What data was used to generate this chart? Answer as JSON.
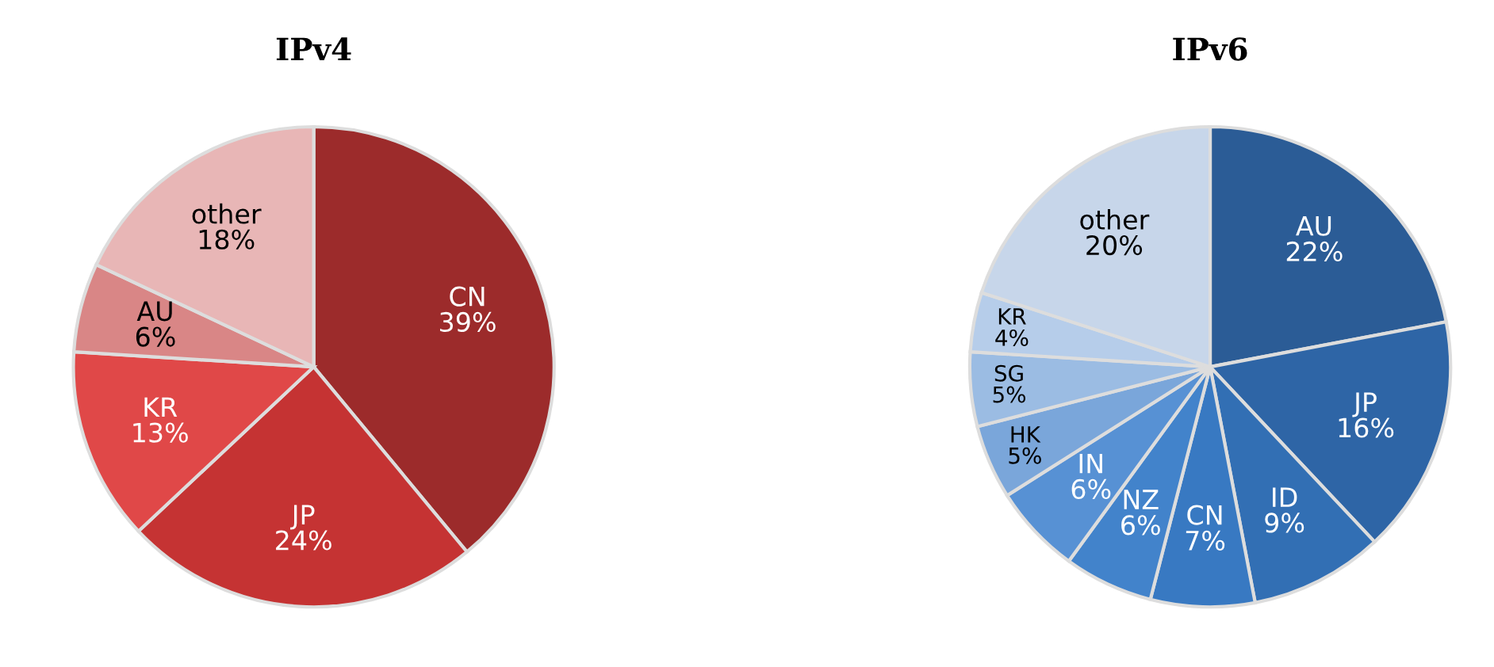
{
  "chart_data": [
    {
      "type": "pie",
      "title": "IPv4",
      "categories": [
        "CN",
        "JP",
        "KR",
        "AU",
        "other"
      ],
      "values": [
        39,
        24,
        13,
        6,
        18
      ],
      "value_labels": [
        "39%",
        "24%",
        "13%",
        "6%",
        "18%"
      ],
      "colors": [
        "#9c2b2b",
        "#c53333",
        "#e04848",
        "#d98686",
        "#e8b6b6"
      ]
    },
    {
      "type": "pie",
      "title": "IPv6",
      "categories": [
        "AU",
        "JP",
        "ID",
        "CN",
        "NZ",
        "IN",
        "HK",
        "SG",
        "KR",
        "other"
      ],
      "values": [
        22,
        16,
        9,
        7,
        6,
        6,
        5,
        5,
        4,
        20
      ],
      "value_labels": [
        "22%",
        "16%",
        "9%",
        "7%",
        "6%",
        "6%",
        "5%",
        "5%",
        "4%",
        "20%"
      ],
      "colors": [
        "#2b5c96",
        "#2e65a6",
        "#326fb4",
        "#3879c2",
        "#4283cb",
        "#5791d4",
        "#7aa6da",
        "#9bbce3",
        "#b6cdea",
        "#c7d6ea"
      ]
    }
  ]
}
